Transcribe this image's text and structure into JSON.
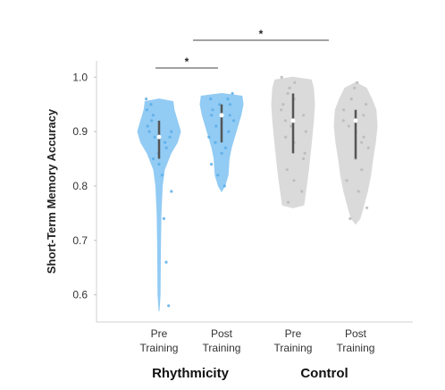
{
  "chart_data": {
    "type": "violin",
    "ylabel": "Short-Term Memory Accuracy",
    "ylim": [
      0.55,
      1.03
    ],
    "yticks": [
      0.6,
      0.7,
      0.8,
      0.9,
      1.0
    ],
    "ytick_labels": [
      "0.6",
      "0.7",
      "0.8",
      "0.9",
      "1.0"
    ],
    "groups": [
      {
        "label": "Rhythmicity",
        "color": "#8dc9f4",
        "point_color": "#5aaee8"
      },
      {
        "label": "Control",
        "color": "#d9d9d9",
        "point_color": "#b8b8b8"
      }
    ],
    "violins": [
      {
        "group": "Rhythmicity",
        "label_line1": "Pre",
        "label_line2": "Training",
        "min": 0.57,
        "max": 0.96,
        "median": 0.89,
        "q1": 0.85,
        "q3": 0.92,
        "profile": [
          [
            0.57,
            0.0
          ],
          [
            0.6,
            0.05
          ],
          [
            0.65,
            0.06
          ],
          [
            0.7,
            0.07
          ],
          [
            0.75,
            0.09
          ],
          [
            0.8,
            0.15
          ],
          [
            0.83,
            0.25
          ],
          [
            0.86,
            0.55
          ],
          [
            0.88,
            0.85
          ],
          [
            0.9,
            1.0
          ],
          [
            0.92,
            0.85
          ],
          [
            0.94,
            0.7
          ],
          [
            0.955,
            0.65
          ],
          [
            0.96,
            0.0
          ]
        ],
        "points": [
          0.96,
          0.95,
          0.94,
          0.93,
          0.92,
          0.91,
          0.9,
          0.9,
          0.89,
          0.89,
          0.88,
          0.87,
          0.86,
          0.85,
          0.84,
          0.82,
          0.79,
          0.74,
          0.66,
          0.58
        ]
      },
      {
        "group": "Rhythmicity",
        "label_line1": "Post",
        "label_line2": "Training",
        "min": 0.79,
        "max": 0.97,
        "median": 0.93,
        "q1": 0.88,
        "q3": 0.95,
        "profile": [
          [
            0.79,
            0.0
          ],
          [
            0.8,
            0.15
          ],
          [
            0.82,
            0.3
          ],
          [
            0.85,
            0.35
          ],
          [
            0.87,
            0.45
          ],
          [
            0.89,
            0.6
          ],
          [
            0.91,
            0.75
          ],
          [
            0.93,
            0.9
          ],
          [
            0.95,
            1.0
          ],
          [
            0.965,
            0.95
          ],
          [
            0.97,
            0.0
          ]
        ],
        "points": [
          0.97,
          0.96,
          0.96,
          0.95,
          0.95,
          0.94,
          0.93,
          0.93,
          0.92,
          0.91,
          0.9,
          0.89,
          0.88,
          0.87,
          0.86,
          0.84,
          0.82,
          0.8
        ]
      },
      {
        "group": "Control",
        "label_line1": "Pre",
        "label_line2": "Training",
        "min": 0.76,
        "max": 1.0,
        "median": 0.92,
        "q1": 0.86,
        "q3": 0.97,
        "profile": [
          [
            0.76,
            0.0
          ],
          [
            0.765,
            0.5
          ],
          [
            0.78,
            0.55
          ],
          [
            0.8,
            0.62
          ],
          [
            0.83,
            0.72
          ],
          [
            0.86,
            0.8
          ],
          [
            0.89,
            0.88
          ],
          [
            0.92,
            0.95
          ],
          [
            0.95,
            1.0
          ],
          [
            0.98,
            0.95
          ],
          [
            0.995,
            0.85
          ],
          [
            1.0,
            0.0
          ]
        ],
        "points": [
          1.0,
          0.99,
          0.98,
          0.97,
          0.96,
          0.95,
          0.94,
          0.93,
          0.92,
          0.91,
          0.9,
          0.89,
          0.88,
          0.86,
          0.85,
          0.83,
          0.81,
          0.79,
          0.77
        ]
      },
      {
        "group": "Control",
        "label_line1": "Post",
        "label_line2": "Training",
        "min": 0.73,
        "max": 0.99,
        "median": 0.92,
        "q1": 0.85,
        "q3": 0.94,
        "profile": [
          [
            0.73,
            0.0
          ],
          [
            0.74,
            0.2
          ],
          [
            0.76,
            0.35
          ],
          [
            0.79,
            0.55
          ],
          [
            0.82,
            0.7
          ],
          [
            0.85,
            0.8
          ],
          [
            0.88,
            0.92
          ],
          [
            0.91,
            1.0
          ],
          [
            0.94,
            0.95
          ],
          [
            0.96,
            0.75
          ],
          [
            0.98,
            0.5
          ],
          [
            0.99,
            0.0
          ]
        ],
        "points": [
          0.99,
          0.98,
          0.96,
          0.95,
          0.94,
          0.93,
          0.92,
          0.92,
          0.91,
          0.9,
          0.89,
          0.88,
          0.87,
          0.85,
          0.83,
          0.81,
          0.79,
          0.76,
          0.74
        ]
      }
    ],
    "significance": [
      {
        "from": 0,
        "to": 1,
        "marker": "*"
      },
      {
        "from": 1,
        "to": 2,
        "marker": "*"
      }
    ]
  }
}
